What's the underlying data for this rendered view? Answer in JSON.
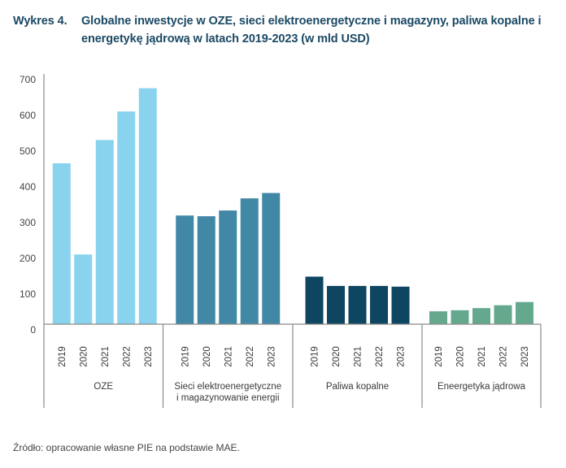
{
  "title": {
    "number": "Wykres 4.",
    "text": "Globalne inwestycje w OZE, sieci elektroenergetyczne i magazyny, paliwa kopalne i energetykę jądrową w latach 2019-2023 (w mld USD)"
  },
  "source": "Źródło: opracowanie własne PIE na podstawie MAE.",
  "chart_data": {
    "type": "bar",
    "title": "Globalne inwestycje w OZE, sieci elektroenergetyczne i magazyny, paliwa kopalne i energetykę jądrową w latach 2019-2023 (w mld USD)",
    "xlabel": "",
    "ylabel": "",
    "ylim": [
      0,
      700
    ],
    "yticks": [
      "0",
      "100",
      "200",
      "300",
      "400",
      "500",
      "600",
      "700"
    ],
    "grid": false,
    "legend": "none",
    "years": [
      "2019",
      "2020",
      "2021",
      "2022",
      "2023"
    ],
    "groups": [
      {
        "name": "OZE",
        "label_lines": [
          "OZE"
        ],
        "color": "#89d3ee",
        "values": [
          450,
          195,
          515,
          595,
          660
        ]
      },
      {
        "name": "Sieci elektroenergetyczne i magazynowanie energii",
        "label_lines": [
          "Sieci elektroenergetyczne",
          "i magazynowanie energii"
        ],
        "color": "#4188a6",
        "values": [
          304,
          302,
          318,
          352,
          367
        ]
      },
      {
        "name": "Paliwa kopalne",
        "label_lines": [
          "Paliwa kopalne"
        ],
        "color": "#0e4560",
        "values": [
          133,
          107,
          107,
          107,
          105
        ]
      },
      {
        "name": "Eneergetyka jądrowa",
        "label_lines": [
          "Eneergetyka jądrowa"
        ],
        "color": "#64a88e",
        "values": [
          36,
          39,
          45,
          53,
          62
        ]
      }
    ]
  }
}
